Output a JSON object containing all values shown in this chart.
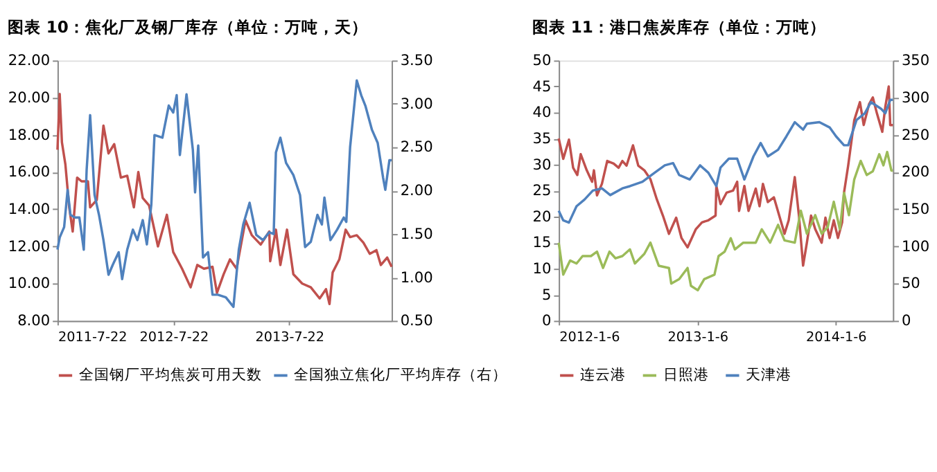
{
  "chart_data": [
    {
      "type": "line",
      "title": "图表 10：焦化厂及钢厂库存（单位：万吨，天）",
      "legend": "bottom",
      "grid": false,
      "xlim": [
        "2011-07-22",
        "2014-06-10"
      ],
      "xticks": [
        {
          "value": "2011-07-22",
          "label": "2011-7-22"
        },
        {
          "value": "2012-07-22",
          "label": "2012-7-22"
        },
        {
          "value": "2013-07-22",
          "label": "2013-7-22"
        }
      ],
      "ylim": [
        8,
        22
      ],
      "yticks": [
        {
          "value": 8,
          "label": "8.00"
        },
        {
          "value": 10,
          "label": "10.00"
        },
        {
          "value": 12,
          "label": "12.00"
        },
        {
          "value": 14,
          "label": "14.00"
        },
        {
          "value": 16,
          "label": "16.00"
        },
        {
          "value": 18,
          "label": "18.00"
        },
        {
          "value": 20,
          "label": "20.00"
        },
        {
          "value": 22,
          "label": "22.00"
        }
      ],
      "y2lim": [
        0.5,
        3.5
      ],
      "y2ticks": [
        {
          "value": 0.5,
          "label": "0.50"
        },
        {
          "value": 1,
          "label": "1.00"
        },
        {
          "value": 1.5,
          "label": "1.50"
        },
        {
          "value": 2,
          "label": "2.00"
        },
        {
          "value": 2.5,
          "label": "2.50"
        },
        {
          "value": 3,
          "label": "3.00"
        },
        {
          "value": 3.5,
          "label": "3.50"
        }
      ],
      "series": [
        {
          "name": "全国钢厂平均焦炭可用天数",
          "color": "#c0504d",
          "x": [
            "2011-07-22",
            "2011-07-29",
            "2011-08-05",
            "2011-08-16",
            "2011-08-28",
            "2011-09-08",
            "2011-09-22",
            "2011-10-06",
            "2011-10-26",
            "2011-11-02",
            "2011-11-23",
            "2011-12-14",
            "2011-12-30",
            "2012-01-17",
            "2012-02-07",
            "2012-02-27",
            "2012-03-19",
            "2012-04-02",
            "2012-04-16",
            "2012-05-06",
            "2012-06-03",
            "2012-07-01",
            "2012-07-21",
            "2012-08-18",
            "2012-09-14",
            "2012-10-05",
            "2012-10-26",
            "2012-11-22",
            "2012-12-06",
            "2012-12-27",
            "2013-01-16",
            "2013-02-06",
            "2013-03-06",
            "2013-03-26",
            "2013-04-23",
            "2013-05-20",
            "2013-05-23",
            "2013-06-10",
            "2013-06-24",
            "2013-07-15",
            "2013-08-04",
            "2013-09-01",
            "2013-09-28",
            "2013-10-26",
            "2013-11-15",
            "2013-11-26",
            "2013-12-06",
            "2013-12-27",
            "2014-01-16",
            "2014-01-30",
            "2014-02-20",
            "2014-03-13",
            "2014-04-02",
            "2014-04-23",
            "2014-05-07",
            "2014-05-27",
            "2014-06-10"
          ],
          "values": [
            17.2,
            20.2,
            17.6,
            16.4,
            14.1,
            12.8,
            15.7,
            15.5,
            15.5,
            14.1,
            14.5,
            18.5,
            17.0,
            17.5,
            15.7,
            15.8,
            14.1,
            16.0,
            14.6,
            14.2,
            12.0,
            13.7,
            11.7,
            10.8,
            9.8,
            11.0,
            10.8,
            10.9,
            9.5,
            10.5,
            11.3,
            10.8,
            13.4,
            12.6,
            12.1,
            12.8,
            11.2,
            12.9,
            11.0,
            12.9,
            10.5,
            10.0,
            9.8,
            9.2,
            9.7,
            8.9,
            10.6,
            11.3,
            12.9,
            12.5,
            12.6,
            12.2,
            11.6,
            11.8,
            11.0,
            11.4,
            10.9
          ]
        },
        {
          "name": "全国独立焦化厂平均库存（右）",
          "color": "#4f81bd",
          "axis": "y2",
          "x": [
            "2011-07-22",
            "2011-07-29",
            "2011-08-12",
            "2011-08-23",
            "2011-09-01",
            "2011-09-15",
            "2011-09-29",
            "2011-10-13",
            "2011-10-22",
            "2011-11-02",
            "2011-11-16",
            "2011-11-30",
            "2011-12-14",
            "2011-12-30",
            "2012-01-13",
            "2012-01-31",
            "2012-02-11",
            "2012-02-27",
            "2012-03-16",
            "2012-03-30",
            "2012-04-16",
            "2012-04-29",
            "2012-05-13",
            "2012-05-23",
            "2012-06-17",
            "2012-07-07",
            "2012-07-21",
            "2012-08-01",
            "2012-08-11",
            "2012-09-01",
            "2012-09-21",
            "2012-09-28",
            "2012-10-08",
            "2012-10-23",
            "2012-11-08",
            "2012-11-22",
            "2012-12-09",
            "2013-01-03",
            "2013-01-27",
            "2013-02-13",
            "2013-02-27",
            "2013-03-19",
            "2013-04-09",
            "2013-04-30",
            "2013-05-20",
            "2013-06-03",
            "2013-06-10",
            "2013-06-24",
            "2013-07-12",
            "2013-08-04",
            "2013-08-25",
            "2013-09-10",
            "2013-09-28",
            "2013-10-19",
            "2013-11-02",
            "2013-11-10",
            "2013-11-29",
            "2013-12-20",
            "2014-01-10",
            "2014-01-18",
            "2014-01-30",
            "2014-02-20",
            "2014-03-06",
            "2014-03-19",
            "2014-04-09",
            "2014-04-27",
            "2014-05-14",
            "2014-05-21",
            "2014-06-03",
            "2014-06-10"
          ],
          "values": [
            1.32,
            1.46,
            1.58,
            2.01,
            1.72,
            1.69,
            1.69,
            1.32,
            2.24,
            2.87,
            1.95,
            1.72,
            1.43,
            1.03,
            1.15,
            1.29,
            0.98,
            1.32,
            1.55,
            1.43,
            1.66,
            1.38,
            1.84,
            2.64,
            2.61,
            2.98,
            2.9,
            3.1,
            2.41,
            3.11,
            2.47,
            1.98,
            2.52,
            1.23,
            1.29,
            0.8,
            0.8,
            0.77,
            0.66,
            1.32,
            1.61,
            1.86,
            1.49,
            1.43,
            1.52,
            1.5,
            2.44,
            2.61,
            2.32,
            2.18,
            1.95,
            1.35,
            1.41,
            1.72,
            1.61,
            1.92,
            1.43,
            1.55,
            1.69,
            1.64,
            2.5,
            3.27,
            3.1,
            2.98,
            2.7,
            2.55,
            2.15,
            2.01,
            2.35,
            2.35
          ]
        }
      ]
    },
    {
      "type": "line",
      "title": "图表 11：港口焦炭库存（单位：万吨）",
      "legend": "bottom",
      "grid": false,
      "xlim": [
        "2012-01-06",
        "2014-06-06"
      ],
      "xticks": [
        {
          "value": "2012-01-06",
          "label": "2012-1-6"
        },
        {
          "value": "2013-01-06",
          "label": "2013-1-6"
        },
        {
          "value": "2014-01-06",
          "label": "2014-1-6"
        }
      ],
      "ylim": [
        0,
        50
      ],
      "yticks": [
        0,
        5,
        10,
        15,
        20,
        25,
        30,
        35,
        40,
        45,
        50
      ],
      "y2lim": [
        0,
        350
      ],
      "y2ticks": [
        0,
        50,
        100,
        150,
        200,
        250,
        300,
        350
      ],
      "series": [
        {
          "name": "连云港",
          "color": "#c0504d",
          "x": [
            "2012-01-06",
            "2012-01-18",
            "2012-02-02",
            "2012-02-13",
            "2012-02-24",
            "2012-03-04",
            "2012-03-20",
            "2012-04-03",
            "2012-04-08",
            "2012-04-16",
            "2012-04-29",
            "2012-05-13",
            "2012-05-30",
            "2012-06-12",
            "2012-06-22",
            "2012-07-03",
            "2012-07-20",
            "2012-08-03",
            "2012-08-19",
            "2012-09-04",
            "2012-09-21",
            "2012-10-07",
            "2012-10-23",
            "2012-11-11",
            "2012-11-25",
            "2012-12-11",
            "2013-01-02",
            "2013-01-18",
            "2013-02-04",
            "2013-02-23",
            "2013-02-25",
            "2013-03-08",
            "2013-03-24",
            "2013-04-10",
            "2013-04-21",
            "2013-04-26",
            "2013-05-10",
            "2013-05-21",
            "2013-06-09",
            "2013-06-19",
            "2013-06-28",
            "2013-07-11",
            "2013-07-27",
            "2013-08-24",
            "2013-09-04",
            "2013-09-20",
            "2013-10-01",
            "2013-10-12",
            "2013-10-22",
            "2013-11-02",
            "2013-11-13",
            "2013-11-30",
            "2013-12-10",
            "2013-12-21",
            "2014-01-01",
            "2014-01-12",
            "2014-01-23",
            "2014-01-28",
            "2014-02-08",
            "2014-02-24",
            "2014-03-11",
            "2014-03-21",
            "2014-04-04",
            "2014-04-14",
            "2014-04-25",
            "2014-05-09",
            "2014-05-17",
            "2014-05-26",
            "2014-05-30",
            "2014-06-06"
          ],
          "values": [
            35.0,
            31.1,
            34.8,
            29.4,
            28.0,
            32.0,
            28.9,
            26.7,
            28.9,
            24.1,
            26.3,
            30.7,
            30.2,
            29.4,
            30.7,
            29.8,
            33.7,
            29.8,
            28.9,
            27.2,
            23.3,
            20.2,
            16.7,
            19.8,
            15.9,
            14.1,
            17.6,
            18.9,
            19.3,
            20.2,
            25.9,
            22.4,
            24.6,
            25.0,
            26.7,
            21.1,
            25.9,
            21.1,
            25.4,
            22.0,
            26.3,
            22.8,
            23.7,
            16.7,
            19.3,
            27.6,
            20.2,
            10.6,
            15.0,
            20.2,
            17.6,
            15.0,
            19.8,
            15.9,
            19.3,
            15.9,
            18.9,
            24.6,
            29.8,
            38.5,
            42.0,
            37.6,
            41.6,
            42.9,
            39.8,
            36.3,
            41.1,
            45.0,
            37.6,
            37.6
          ]
        },
        {
          "name": "日照港",
          "color": "#9bbb59",
          "axis": "y2",
          "x": [
            "2012-01-06",
            "2012-01-18",
            "2012-02-05",
            "2012-02-22",
            "2012-03-09",
            "2012-03-31",
            "2012-04-16",
            "2012-05-02",
            "2012-05-19",
            "2012-06-04",
            "2012-06-22",
            "2012-07-12",
            "2012-07-25",
            "2012-08-19",
            "2012-09-04",
            "2012-09-26",
            "2012-10-23",
            "2012-10-29",
            "2012-11-19",
            "2012-12-11",
            "2012-12-20",
            "2013-01-07",
            "2013-01-24",
            "2013-02-20",
            "2013-03-03",
            "2013-03-19",
            "2013-04-04",
            "2013-04-15",
            "2013-05-07",
            "2013-06-09",
            "2013-06-25",
            "2013-07-17",
            "2013-08-07",
            "2013-08-24",
            "2013-09-20",
            "2013-10-06",
            "2013-10-22",
            "2013-11-13",
            "2013-11-30",
            "2013-12-16",
            "2014-01-01",
            "2014-01-17",
            "2014-01-28",
            "2014-02-10",
            "2014-02-24",
            "2014-03-13",
            "2014-03-29",
            "2014-04-14",
            "2014-05-01",
            "2014-05-12",
            "2014-05-22",
            "2014-06-02",
            "2014-06-06"
          ],
          "values": [
            105,
            62,
            81,
            77,
            87,
            87,
            93,
            71,
            93,
            84,
            87,
            96,
            77,
            90,
            105,
            74,
            71,
            50,
            56,
            71,
            47,
            41,
            56,
            62,
            87,
            93,
            111,
            96,
            105,
            105,
            123,
            105,
            129,
            108,
            105,
            148,
            117,
            142,
            117,
            126,
            160,
            123,
            172,
            142,
            190,
            215,
            196,
            201,
            224,
            209,
            227,
            202,
            202
          ]
        },
        {
          "name": "天津港",
          "color": "#4f81bd",
          "axis": "y2",
          "x": [
            "2012-01-06",
            "2012-01-18",
            "2012-02-02",
            "2012-02-22",
            "2012-03-14",
            "2012-04-05",
            "2012-04-29",
            "2012-05-21",
            "2012-06-22",
            "2012-07-12",
            "2012-08-14",
            "2012-09-15",
            "2012-10-12",
            "2012-11-03",
            "2012-11-19",
            "2012-12-17",
            "2013-01-13",
            "2013-02-04",
            "2013-02-25",
            "2013-03-08",
            "2013-03-30",
            "2013-04-21",
            "2013-05-10",
            "2013-06-03",
            "2013-06-22",
            "2013-07-11",
            "2013-08-07",
            "2013-08-29",
            "2013-09-20",
            "2013-10-12",
            "2013-10-22",
            "2013-11-24",
            "2013-12-21",
            "2014-01-07",
            "2014-01-28",
            "2014-02-08",
            "2014-03-02",
            "2014-03-24",
            "2014-04-09",
            "2014-05-06",
            "2014-05-17",
            "2014-05-30",
            "2014-06-06"
          ],
          "values": [
            148,
            135,
            132,
            154,
            163,
            175,
            178,
            169,
            178,
            181,
            187,
            199,
            209,
            212,
            196,
            190,
            209,
            199,
            181,
            206,
            218,
            218,
            190,
            221,
            239,
            221,
            230,
            248,
            267,
            257,
            265,
            267,
            260,
            248,
            236,
            236,
            270,
            279,
            294,
            285,
            279,
            297,
            297
          ]
        }
      ]
    }
  ]
}
